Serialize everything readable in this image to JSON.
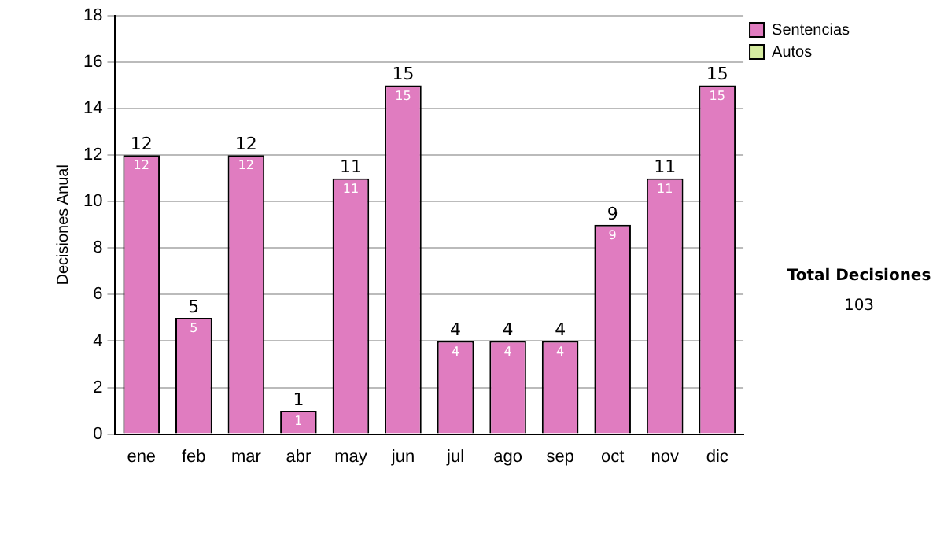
{
  "chart_data": {
    "type": "bar",
    "stacked": true,
    "ylabel": "Decisiones Anual",
    "categories": [
      "ene",
      "feb",
      "mar",
      "abr",
      "may",
      "jun",
      "jul",
      "ago",
      "sep",
      "oct",
      "nov",
      "dic"
    ],
    "series": [
      {
        "name": "Sentencias",
        "color": "#e07cc0",
        "values": [
          12,
          5,
          12,
          1,
          11,
          15,
          4,
          4,
          4,
          9,
          11,
          15
        ],
        "value_labels": [
          "12",
          "5",
          "12",
          "1",
          "11",
          "15",
          "4",
          "4",
          "4",
          "9",
          "11",
          "15"
        ]
      },
      {
        "name": "Autos",
        "color": "#d6eca0",
        "values": [
          0,
          0,
          0,
          0,
          0,
          0,
          0,
          0,
          0,
          0,
          0,
          0
        ]
      }
    ],
    "totals": [
      "12",
      "5",
      "12",
      "1",
      "11",
      "15",
      "4",
      "4",
      "4",
      "9",
      "11",
      "15"
    ],
    "ylim": [
      0,
      18
    ],
    "yticks": [
      0,
      2,
      4,
      6,
      8,
      10,
      12,
      14,
      16,
      18
    ],
    "grid": "y",
    "legend": "right",
    "annotations": [
      "Total Decisiones",
      "103"
    ]
  }
}
